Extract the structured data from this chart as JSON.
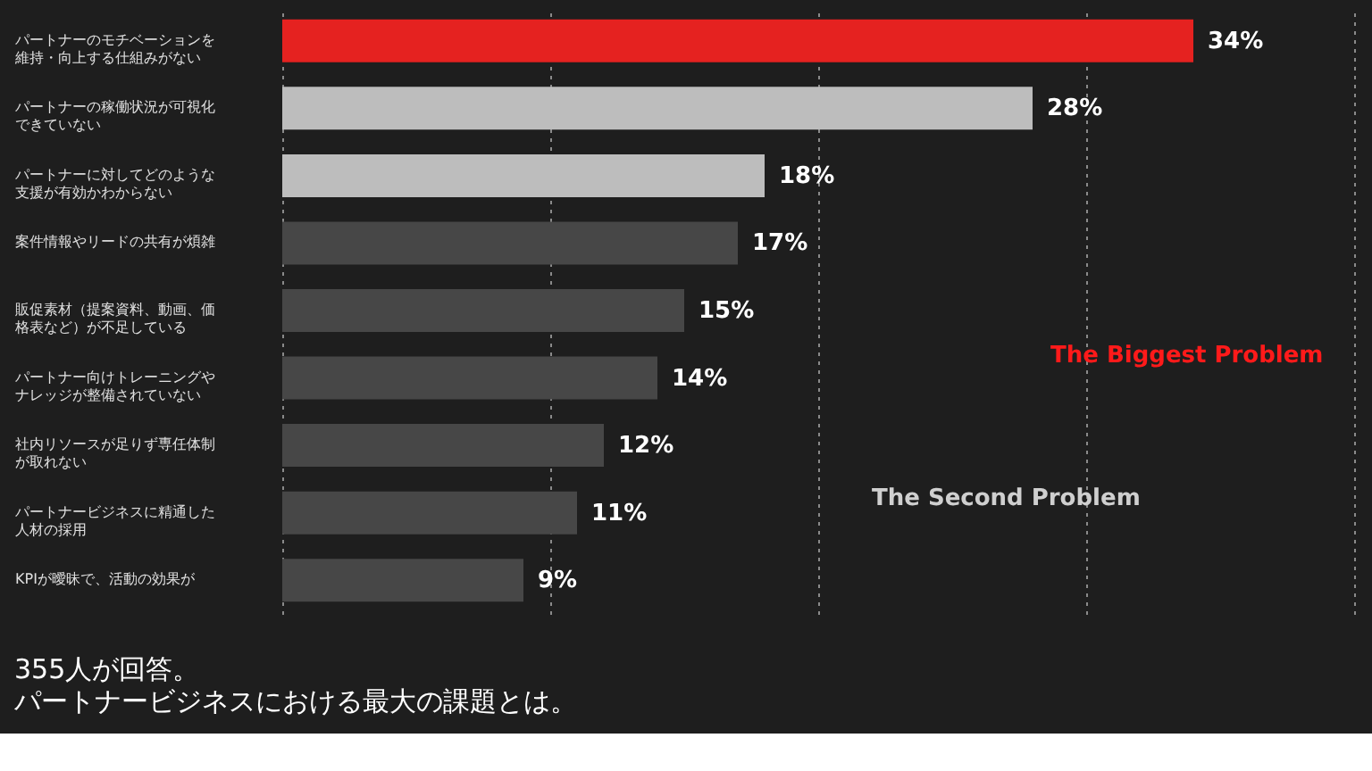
{
  "chart_data": {
    "type": "bar",
    "orientation": "horizontal",
    "title": "355人が回答。",
    "subtitle": "パートナービジネスにおける最大の課題とは。",
    "categories": [
      "パートナーのモチベーションを維持・向上する仕組みがない",
      "パートナーの稼働状況が可視化できていない",
      "パートナーに対してどのような支援が有効かわからない",
      "案件情報やリードの共有が煩雑",
      "販促素材（提案資料、動画、価格表など）が不足している",
      "パートナー向けトレーニングやナレッジが整備されていない",
      "社内リソースが足りず専任体制が取れない",
      "パートナービジネスに精通した人材の採用",
      "KPIが曖昧で、活動の効果が"
    ],
    "values": [
      34,
      28,
      18,
      17,
      15,
      14,
      12,
      11,
      9
    ],
    "value_labels": [
      "34%",
      "28%",
      "18%",
      "17%",
      "15%",
      "14%",
      "12%",
      "11%",
      "9%"
    ],
    "colors": [
      "#e52220",
      "#bdbdbd",
      "#bdbdbd",
      "#474747",
      "#474747",
      "#474747",
      "#474747",
      "#474747",
      "#474747"
    ],
    "xlim": [
      0,
      40
    ],
    "xticks": [
      {
        "value": 0,
        "label": null
      },
      {
        "value": 10,
        "label": null
      },
      {
        "value": 20,
        "label": null
      },
      {
        "value": 30,
        "label": null
      },
      {
        "value": 40,
        "label": null
      }
    ],
    "tick_labels": "y",
    "grid": "x",
    "annotations": [
      "The Biggest Problem",
      "The Second Problem"
    ]
  }
}
